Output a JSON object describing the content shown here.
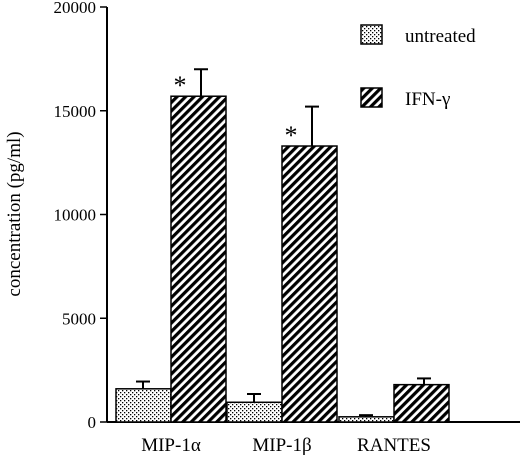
{
  "chart_data": {
    "type": "bar",
    "title": "",
    "xlabel": "",
    "ylabel": "concentration (pg/ml)",
    "ylim": [
      0,
      20000
    ],
    "yticks": [
      "0",
      "5000",
      "10000",
      "15000",
      "20000"
    ],
    "categories": [
      "MIP-1α",
      "MIP-1β",
      "RANTES"
    ],
    "series": [
      {
        "name": "untreated",
        "values": [
          1600,
          950,
          250
        ],
        "errors": [
          350,
          400,
          80
        ],
        "pattern": "dots"
      },
      {
        "name": "IFN-γ",
        "values": [
          15700,
          13300,
          1800
        ],
        "errors": [
          1300,
          1900,
          300
        ],
        "pattern": "hatch"
      }
    ],
    "annotations": [
      {
        "category": "MIP-1α",
        "series": "IFN-γ",
        "text": "*"
      },
      {
        "category": "MIP-1β",
        "series": "IFN-γ",
        "text": "*"
      }
    ],
    "legend_position": "top-right",
    "grid": false
  }
}
